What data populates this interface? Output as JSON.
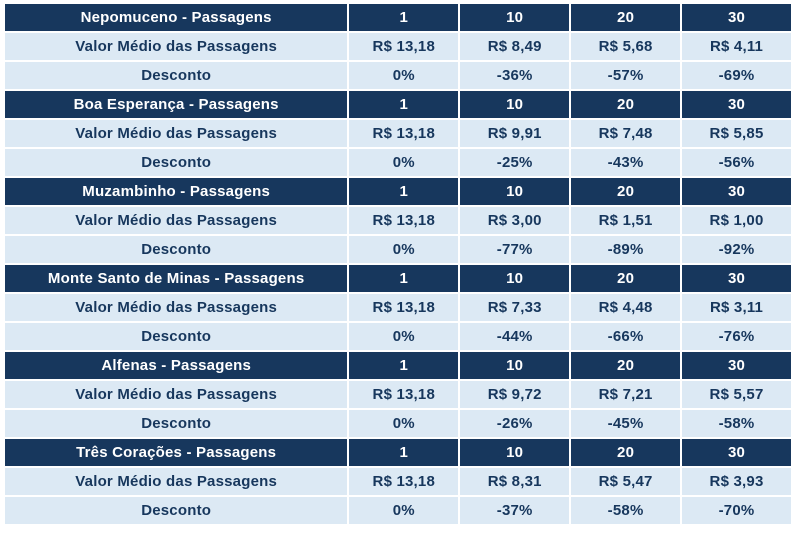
{
  "table": {
    "column_headers": [
      "1",
      "10",
      "20",
      "30"
    ],
    "row_labels": {
      "fare": "Valor Médio das Passagens",
      "discount": "Desconto"
    },
    "sections": [
      {
        "title": "Nepomuceno - Passagens",
        "fares": [
          "R$ 13,18",
          "R$ 8,49",
          "R$ 5,68",
          "R$ 4,11"
        ],
        "discounts": [
          "0%",
          "-36%",
          "-57%",
          "-69%"
        ]
      },
      {
        "title": "Boa Esperança - Passagens",
        "fares": [
          "R$ 13,18",
          "R$ 9,91",
          "R$ 7,48",
          "R$ 5,85"
        ],
        "discounts": [
          "0%",
          "-25%",
          "-43%",
          "-56%"
        ]
      },
      {
        "title": "Muzambinho - Passagens",
        "fares": [
          "R$ 13,18",
          "R$ 3,00",
          "R$ 1,51",
          "R$ 1,00"
        ],
        "discounts": [
          "0%",
          "-77%",
          "-89%",
          "-92%"
        ]
      },
      {
        "title": "Monte Santo de Minas - Passagens",
        "fares": [
          "R$ 13,18",
          "R$ 7,33",
          "R$ 4,48",
          "R$ 3,11"
        ],
        "discounts": [
          "0%",
          "-44%",
          "-66%",
          "-76%"
        ]
      },
      {
        "title": "Alfenas - Passagens",
        "fares": [
          "R$ 13,18",
          "R$ 9,72",
          "R$ 7,21",
          "R$ 5,57"
        ],
        "discounts": [
          "0%",
          "-26%",
          "-45%",
          "-58%"
        ]
      },
      {
        "title": "Três Corações - Passagens",
        "fares": [
          "R$ 13,18",
          "R$ 8,31",
          "R$ 5,47",
          "R$ 3,93"
        ],
        "discounts": [
          "0%",
          "-37%",
          "-58%",
          "-70%"
        ]
      }
    ],
    "colors": {
      "header_bg": "#17375d",
      "header_text": "#ffffff",
      "row_bg": "#dce9f4",
      "text_dark": "#17375d",
      "grid": "#ffffff"
    }
  }
}
